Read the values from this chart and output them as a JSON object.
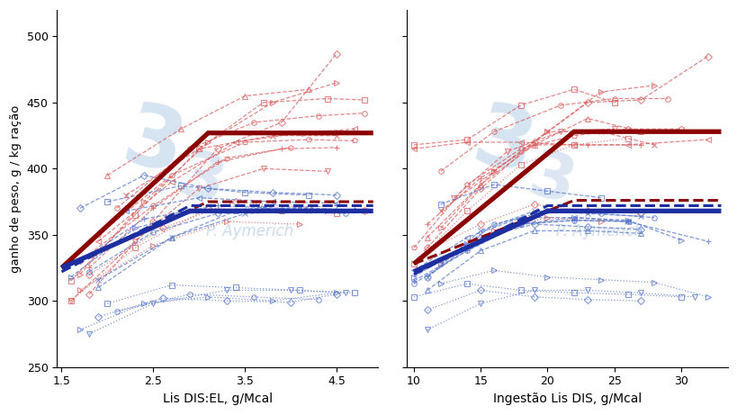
{
  "fig_width": 8.2,
  "fig_height": 4.61,
  "dpi": 100,
  "background_color": "#ffffff",
  "ylabel": "ganho de peso, g / kg ração",
  "xlabel_left": "Lis DIS:EL, g/Mcal",
  "xlabel_right": "Ingestão Lis DIS, g/Mcal",
  "ylim": [
    250,
    520
  ],
  "yticks": [
    250,
    300,
    350,
    400,
    450,
    500
  ],
  "xlim_left": [
    1.45,
    4.95
  ],
  "xticks_left": [
    1.5,
    2.5,
    3.5,
    4.5
  ],
  "xlim_right": [
    9.5,
    33.5
  ],
  "xticks_right": [
    10,
    15,
    20,
    25,
    30
  ],
  "red_dark": "#8B0000",
  "red_light": "#D96060",
  "blue_dark": "#1C2EA0",
  "blue_light": "#5878CC",
  "wm_color": "#C5D8EC",
  "wm_text": "P. Aymerich",
  "left_panel": {
    "red_thin": [
      {
        "x": [
          1.6,
          2.3,
          3.0,
          3.7,
          4.4,
          4.8
        ],
        "y": [
          315,
          365,
          415,
          450,
          453,
          452
        ],
        "ls": "--",
        "mk": "s"
      },
      {
        "x": [
          1.8,
          2.5,
          3.2,
          3.9,
          4.5
        ],
        "y": [
          305,
          360,
          415,
          435,
          487
        ],
        "ls": "--",
        "mk": "D"
      },
      {
        "x": [
          1.7,
          2.4,
          3.1,
          3.8,
          4.5
        ],
        "y": [
          320,
          375,
          420,
          450,
          465
        ],
        "ls": "--",
        "mk": ">"
      },
      {
        "x": [
          2.0,
          2.8,
          3.5,
          4.2
        ],
        "y": [
          395,
          430,
          455,
          460
        ],
        "ls": "--",
        "mk": "^"
      },
      {
        "x": [
          2.1,
          2.9,
          3.6,
          4.3,
          4.8
        ],
        "y": [
          370,
          415,
          435,
          440,
          442
        ],
        "ls": "--",
        "mk": "o"
      },
      {
        "x": [
          1.9,
          2.7,
          3.4,
          4.1,
          4.7
        ],
        "y": [
          345,
          390,
          420,
          427,
          430
        ],
        "ls": "--",
        "mk": "<"
      },
      {
        "x": [
          1.6,
          2.3,
          3.0,
          3.7,
          4.4
        ],
        "y": [
          300,
          345,
          385,
          400,
          398
        ],
        "ls": "--",
        "mk": "v"
      },
      {
        "x": [
          1.8,
          2.5,
          3.2,
          3.9,
          4.5
        ],
        "y": [
          325,
          370,
          405,
          415,
          416
        ],
        "ls": "--",
        "mk": "+"
      },
      {
        "x": [
          2.2,
          3.0,
          3.8,
          4.5
        ],
        "y": [
          380,
          415,
          425,
          425
        ],
        "ls": "--",
        "mk": "x"
      },
      {
        "x": [
          1.9,
          2.7,
          3.5,
          4.2,
          4.7
        ],
        "y": [
          350,
          395,
          420,
          422,
          421
        ],
        "ls": "--",
        "mk": "p"
      },
      {
        "x": [
          1.7,
          2.5,
          3.3,
          4.0
        ],
        "y": [
          330,
          372,
          408,
          416
        ],
        "ls": "--",
        "mk": "h"
      },
      {
        "x": [
          1.6,
          2.3,
          3.1,
          3.9,
          4.5
        ],
        "y": [
          300,
          340,
          370,
          368,
          366
        ],
        "ls": ":",
        "mk": "s"
      },
      {
        "x": [
          1.8,
          2.6,
          3.4,
          4.2,
          4.8
        ],
        "y": [
          320,
          355,
          375,
          370,
          368
        ],
        "ls": ":",
        "mk": "D"
      },
      {
        "x": [
          1.7,
          2.5,
          3.3,
          4.1
        ],
        "y": [
          308,
          342,
          360,
          358
        ],
        "ls": ":",
        "mk": ">"
      }
    ],
    "blue_thin": [
      {
        "x": [
          1.7,
          2.4,
          3.1,
          3.8,
          4.5
        ],
        "y": [
          370,
          395,
          385,
          382,
          380
        ],
        "ls": "--",
        "mk": "D"
      },
      {
        "x": [
          1.6,
          2.3,
          3.0,
          3.7,
          4.4
        ],
        "y": [
          318,
          355,
          368,
          370,
          368
        ],
        "ls": "--",
        "mk": ">"
      },
      {
        "x": [
          2.0,
          2.8,
          3.5,
          4.2
        ],
        "y": [
          375,
          387,
          382,
          380
        ],
        "ls": "--",
        "mk": "s"
      },
      {
        "x": [
          1.9,
          2.7,
          3.4,
          4.1,
          4.7
        ],
        "y": [
          310,
          348,
          368,
          370,
          369
        ],
        "ls": "--",
        "mk": "^"
      },
      {
        "x": [
          2.2,
          3.0,
          3.8,
          4.5
        ],
        "y": [
          368,
          378,
          375,
          374
        ],
        "ls": "--",
        "mk": "<"
      },
      {
        "x": [
          1.8,
          2.5,
          3.2,
          3.9,
          4.6
        ],
        "y": [
          322,
          352,
          366,
          368,
          366
        ],
        "ls": "--",
        "mk": "o"
      },
      {
        "x": [
          1.7,
          2.4,
          3.2,
          3.9,
          4.5
        ],
        "y": [
          330,
          362,
          372,
          370,
          372
        ],
        "ls": "--",
        "mk": "+"
      },
      {
        "x": [
          1.9,
          2.7,
          3.5,
          4.2,
          4.8
        ],
        "y": [
          316,
          348,
          366,
          368,
          368
        ],
        "ls": "--",
        "mk": "x"
      },
      {
        "x": [
          1.8,
          2.5,
          3.3,
          4.0,
          4.6
        ],
        "y": [
          275,
          298,
          308,
          308,
          306
        ],
        "ls": ":",
        "mk": "v"
      },
      {
        "x": [
          2.0,
          2.7,
          3.4,
          4.1,
          4.7
        ],
        "y": [
          298,
          312,
          310,
          308,
          306
        ],
        "ls": ":",
        "mk": "s"
      },
      {
        "x": [
          1.9,
          2.6,
          3.3,
          4.0,
          4.5
        ],
        "y": [
          288,
          302,
          300,
          299,
          305
        ],
        "ls": ":",
        "mk": "D"
      },
      {
        "x": [
          1.7,
          2.4,
          3.1,
          3.8,
          4.5
        ],
        "y": [
          278,
          298,
          303,
          300,
          306
        ],
        "ls": ":",
        "mk": ">"
      },
      {
        "x": [
          2.1,
          2.9,
          3.6,
          4.3
        ],
        "y": [
          292,
          305,
          303,
          301
        ],
        "ls": ":",
        "mk": "o"
      }
    ],
    "red_model_solid": {
      "x": [
        1.5,
        3.1,
        4.9
      ],
      "y": [
        325,
        427,
        427
      ]
    },
    "blue_model_solid": {
      "x": [
        1.5,
        2.9,
        4.9
      ],
      "y": [
        325,
        368,
        368
      ]
    },
    "red_model_dash": {
      "x": [
        1.5,
        3.1,
        4.9
      ],
      "y": [
        325,
        375,
        375
      ]
    },
    "blue_model_dash": {
      "x": [
        1.5,
        2.9,
        4.9
      ],
      "y": [
        322,
        372,
        372
      ]
    }
  },
  "right_panel": {
    "red_thin": [
      {
        "x": [
          11,
          15,
          19,
          23,
          27,
          32
        ],
        "y": [
          340,
          385,
          420,
          450,
          452,
          485
        ],
        "ls": "--",
        "mk": "D"
      },
      {
        "x": [
          12,
          16,
          20,
          24,
          28
        ],
        "y": [
          355,
          398,
          428,
          458,
          463
        ],
        "ls": "--",
        "mk": ">"
      },
      {
        "x": [
          10,
          14,
          18,
          22,
          25
        ],
        "y": [
          418,
          422,
          448,
          460,
          450
        ],
        "ls": "--",
        "mk": "s"
      },
      {
        "x": [
          11,
          15,
          19,
          23,
          27
        ],
        "y": [
          348,
          388,
          418,
          438,
          428
        ],
        "ls": "--",
        "mk": "^"
      },
      {
        "x": [
          12,
          16,
          21,
          25,
          29
        ],
        "y": [
          398,
          428,
          448,
          453,
          453
        ],
        "ls": "--",
        "mk": "o"
      },
      {
        "x": [
          10,
          14,
          18,
          22,
          26,
          32
        ],
        "y": [
          415,
          420,
          420,
          418,
          418,
          422
        ],
        "ls": "--",
        "mk": "<"
      },
      {
        "x": [
          13,
          17,
          21,
          25
        ],
        "y": [
          378,
          413,
          428,
          430
        ],
        "ls": "--",
        "mk": "v"
      },
      {
        "x": [
          11,
          15,
          19,
          23,
          27
        ],
        "y": [
          358,
          393,
          418,
          418,
          418
        ],
        "ls": "--",
        "mk": "+"
      },
      {
        "x": [
          12,
          16,
          20,
          24,
          28
        ],
        "y": [
          368,
          398,
          428,
          428,
          418
        ],
        "ls": "--",
        "mk": "x"
      },
      {
        "x": [
          10,
          14,
          18,
          22,
          26
        ],
        "y": [
          328,
          368,
          403,
          418,
          423
        ],
        "ls": ":",
        "mk": "s"
      },
      {
        "x": [
          11,
          15,
          19,
          23,
          27
        ],
        "y": [
          338,
          358,
          373,
          368,
          366
        ],
        "ls": ":",
        "mk": "D"
      },
      {
        "x": [
          12,
          16,
          20,
          24
        ],
        "y": [
          328,
          353,
          363,
          360
        ],
        "ls": ":",
        "mk": ">"
      },
      {
        "x": [
          10,
          14,
          18,
          22,
          26,
          30
        ],
        "y": [
          340,
          388,
          415,
          425,
          430,
          430
        ],
        "ls": "--",
        "mk": "p"
      }
    ],
    "blue_thin": [
      {
        "x": [
          11,
          15,
          19,
          23,
          27
        ],
        "y": [
          318,
          348,
          358,
          356,
          354
        ],
        "ls": "--",
        "mk": "D"
      },
      {
        "x": [
          10,
          14,
          18,
          22,
          26,
          30
        ],
        "y": [
          318,
          343,
          358,
          363,
          361,
          346
        ],
        "ls": "--",
        "mk": ">"
      },
      {
        "x": [
          12,
          16,
          20,
          24
        ],
        "y": [
          373,
          388,
          383,
          378
        ],
        "ls": "--",
        "mk": "s"
      },
      {
        "x": [
          11,
          15,
          19,
          23,
          27
        ],
        "y": [
          308,
          338,
          353,
          353,
          351
        ],
        "ls": "--",
        "mk": "^"
      },
      {
        "x": [
          10,
          14,
          18,
          22,
          26
        ],
        "y": [
          323,
          348,
          363,
          363,
          360
        ],
        "ls": "--",
        "mk": "<"
      },
      {
        "x": [
          12,
          16,
          20,
          24,
          28
        ],
        "y": [
          328,
          358,
          368,
          366,
          363
        ],
        "ls": "--",
        "mk": "o"
      },
      {
        "x": [
          10,
          14,
          18,
          22,
          26,
          32
        ],
        "y": [
          315,
          338,
          358,
          361,
          360,
          345
        ],
        "ls": "--",
        "mk": "+"
      },
      {
        "x": [
          11,
          15,
          19,
          23,
          27
        ],
        "y": [
          318,
          353,
          368,
          366,
          364
        ],
        "ls": "--",
        "mk": "x"
      },
      {
        "x": [
          11,
          15,
          19,
          23,
          27,
          31
        ],
        "y": [
          278,
          298,
          308,
          308,
          306,
          303
        ],
        "ls": ":",
        "mk": "v"
      },
      {
        "x": [
          10,
          14,
          18,
          22,
          26,
          30
        ],
        "y": [
          303,
          313,
          308,
          306,
          305,
          303
        ],
        "ls": ":",
        "mk": "s"
      },
      {
        "x": [
          11,
          15,
          19,
          23,
          27
        ],
        "y": [
          293,
          308,
          303,
          301,
          300
        ],
        "ls": ":",
        "mk": "D"
      },
      {
        "x": [
          12,
          16,
          20,
          24,
          28,
          32
        ],
        "y": [
          313,
          323,
          318,
          316,
          314,
          303
        ],
        "ls": ":",
        "mk": ">"
      },
      {
        "x": [
          10,
          14,
          18,
          22,
          26
        ],
        "y": [
          313,
          338,
          358,
          361,
          360
        ],
        "ls": "--",
        "mk": "o"
      }
    ],
    "red_model_solid": {
      "x": [
        10,
        22,
        33
      ],
      "y": [
        328,
        428,
        428
      ]
    },
    "blue_model_solid": {
      "x": [
        10,
        20,
        33
      ],
      "y": [
        322,
        368,
        368
      ]
    },
    "red_model_dash": {
      "x": [
        10,
        22,
        33
      ],
      "y": [
        328,
        376,
        376
      ]
    },
    "blue_model_dash": {
      "x": [
        10,
        20,
        33
      ],
      "y": [
        320,
        372,
        372
      ]
    }
  }
}
